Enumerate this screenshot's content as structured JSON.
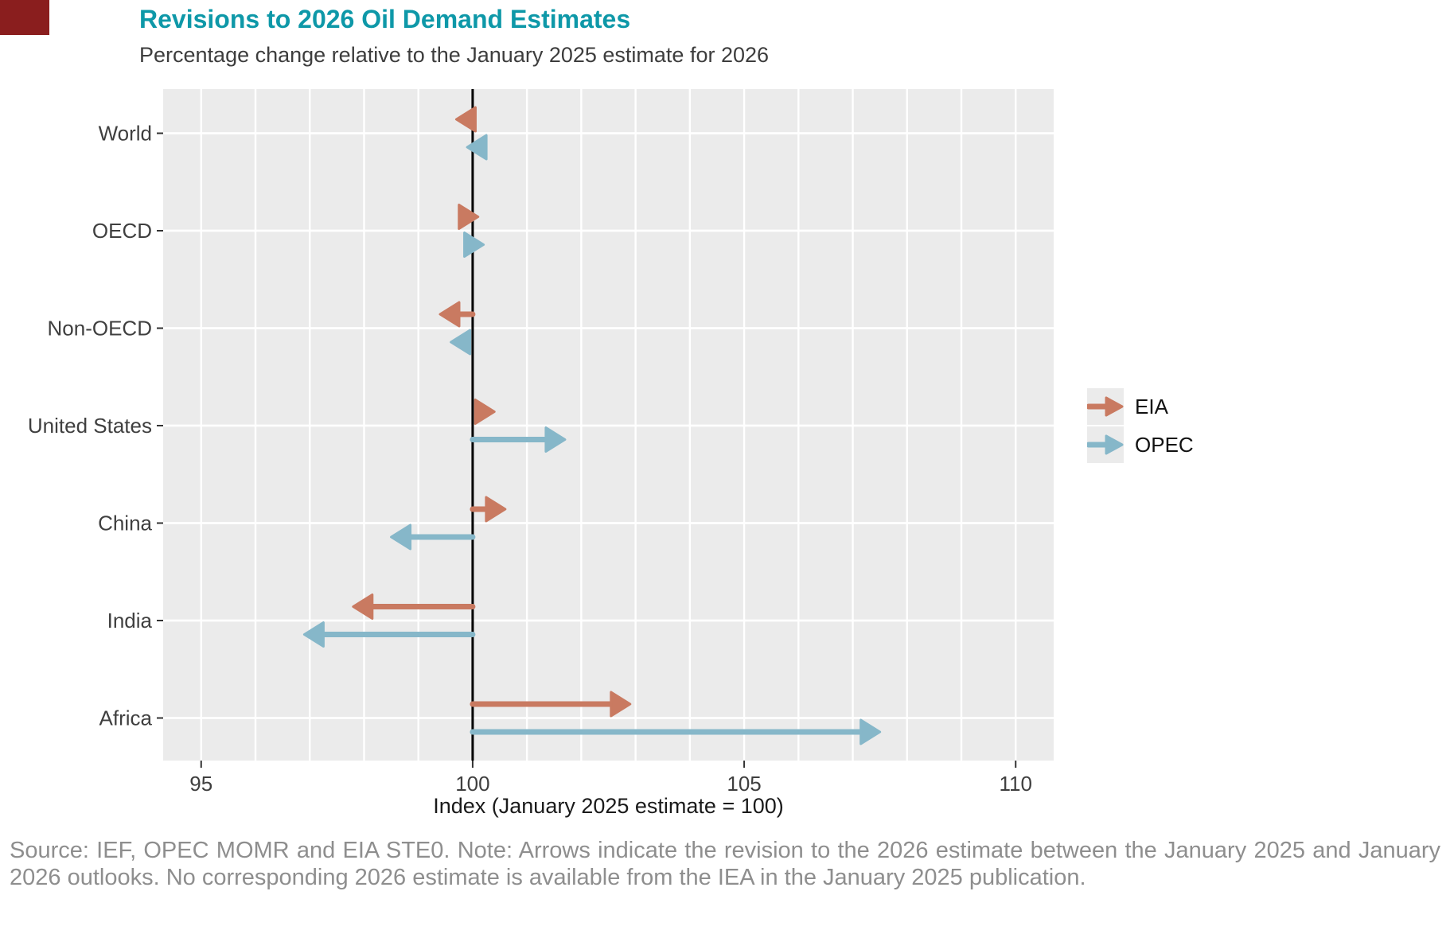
{
  "brand_block": {
    "color": "#8A1E1E"
  },
  "header": {
    "title": "Revisions to 2026 Oil Demand Estimates",
    "title_color": "#0E98A8",
    "subtitle": "Percentage change relative to the January 2025 estimate for 2026"
  },
  "chart_data": {
    "type": "arrow",
    "orientation": "horizontal",
    "title": "Revisions to 2026 Oil Demand Estimates",
    "subtitle": "Percentage change relative to the January 2025 estimate for 2026",
    "categories": [
      "World",
      "OECD",
      "Non-OECD",
      "United States",
      "China",
      "India",
      "Africa"
    ],
    "arrow_start": 100,
    "series": [
      {
        "name": "EIA",
        "color": "#C97A61",
        "values": [
          99.7,
          100.1,
          99.4,
          100.4,
          100.6,
          97.8,
          102.9
        ]
      },
      {
        "name": "OPEC",
        "color": "#86B7C9",
        "values": [
          99.9,
          100.2,
          99.6,
          101.7,
          98.5,
          96.9,
          107.5
        ]
      }
    ],
    "xlabel": "Index (January 2025 estimate = 100)",
    "x_ticks": [
      95,
      100,
      105,
      110
    ],
    "x_minor_grid_step": 1,
    "xlim": [
      94.3,
      110.7
    ],
    "reference_line": 100,
    "panel_background": "#EBEBEB",
    "grid_color": "#FFFFFF",
    "grid": "on",
    "axis_text_color": "#3F3F3F",
    "axis_title_color": "#1A1A1A",
    "legend_position": "right-middle"
  },
  "legend": {
    "items": [
      {
        "label": "EIA"
      },
      {
        "label": "OPEC"
      }
    ]
  },
  "footer": {
    "source_note": "Source: IEF, OPEC MOMR and EIA STE0. Note: Arrows indicate the revision to the 2026 estimate between the January 2025 and January 2026 outlooks. No corresponding 2026 estimate is available from the IEA in the January 2025 publication."
  }
}
